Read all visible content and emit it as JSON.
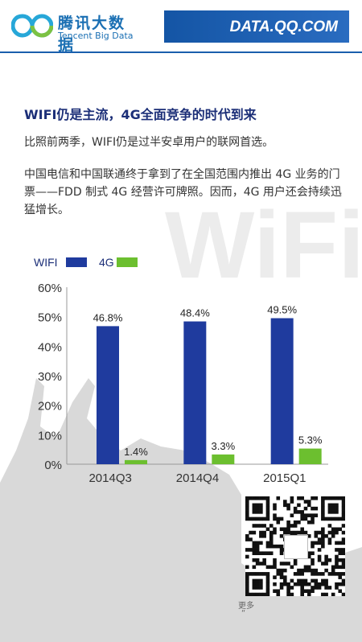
{
  "header": {
    "logo_cn": "腾讯大数据",
    "logo_en": "Tencent Big Data",
    "site": "DATA.QQ.COM"
  },
  "title": "WIFI仍是主流，4G全面竞争的时代到来",
  "para1": "比照前两季，WIFI仍是过半安卓用户的联网首选。",
  "para2": "中国电信和中国联通终于拿到了在全国范围内推出 4G 业务的门票——FDD 制式 4G 经营许可牌照。因而，4G 用户还会持续迅猛增长。",
  "watermark": "WiFi",
  "footer": {
    "caption1": "更多",
    "caption2": "“"
  },
  "colors": {
    "wifi": "#1f3b9e",
    "g4": "#6cbf2f",
    "brand": "#1455a5"
  },
  "chart_data": {
    "type": "bar",
    "categories": [
      "2014Q3",
      "2014Q4",
      "2015Q1"
    ],
    "series": [
      {
        "name": "WIFI",
        "values": [
          46.8,
          48.4,
          49.5
        ],
        "labels": [
          "46.8%",
          "48.4%",
          "49.5%"
        ]
      },
      {
        "name": "4G",
        "values": [
          1.4,
          3.3,
          5.3
        ],
        "labels": [
          "1.4%",
          "3.3%",
          "5.3%"
        ]
      }
    ],
    "yticks": [
      "0%",
      "10%",
      "20%",
      "30%",
      "40%",
      "50%",
      "60%"
    ],
    "ylim": [
      0,
      60
    ],
    "legend": "top-left",
    "grid": false
  }
}
